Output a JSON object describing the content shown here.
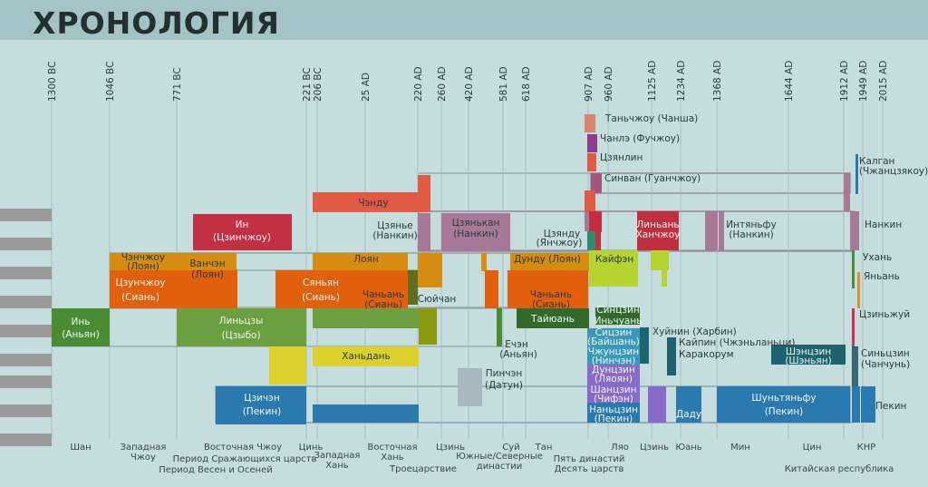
{
  "title": "ХРОНОЛОГИЯ",
  "chart_data": {
    "type": "timeline",
    "ticks": [
      "1300 BC",
      "1046 BC",
      "771 BC",
      "221 BC",
      "206 BC",
      "25 AD",
      "220 AD",
      "260 AD",
      "420 AD",
      "581 AD",
      "618 AD",
      "907 AD",
      "960 AD",
      "1125 AD",
      "1234 AD",
      "1368 AD",
      "1644 AD",
      "1912 AD",
      "1949 AD",
      "2015 AD"
    ],
    "bars": [
      {
        "color": "#d9856e",
        "row": "cj1"
      },
      {
        "color": "#8e3c8e",
        "row": "cj2"
      },
      {
        "color": "#e05a44",
        "row": "cj3"
      },
      {
        "color": "#a05880",
        "row": "cj4"
      },
      {
        "color": "#e05a44",
        "row": "nj-top"
      },
      {
        "color": "#e05a44",
        "row": "nj"
      },
      {
        "color": "#c23044",
        "row": "in"
      },
      {
        "color": "#a87898",
        "row": "njk"
      },
      {
        "color": "#a87898",
        "row": "njk2"
      },
      {
        "color": "#c02e40",
        "row": "ljx"
      },
      {
        "color": "#a87898",
        "row": "njk3"
      },
      {
        "color": "#d68c10",
        "row": "luoyang"
      },
      {
        "color": "#e0600e",
        "row": "changan"
      },
      {
        "color": "#5e6e1c",
        "row": "chan"
      },
      {
        "color": "#b6d430",
        "row": "kaifeng"
      },
      {
        "color": "#4a8c34",
        "row": "anyang"
      },
      {
        "color": "#6aa040",
        "row": "linzi"
      },
      {
        "color": "#8a9a10",
        "row": "ye"
      },
      {
        "color": "#336a2c",
        "row": "taiyuan"
      },
      {
        "color": "#dcd02c",
        "row": "handan"
      },
      {
        "color": "#a8b8c0",
        "row": "datun"
      },
      {
        "color": "#3a98b8",
        "row": "xijin"
      },
      {
        "color": "#1e6470",
        "row": "khuinin"
      },
      {
        "color": "#8a6ac8",
        "row": "shangjin"
      },
      {
        "color": "#2a7ab0",
        "row": "peking"
      }
    ]
  },
  "cities": [
    "Таньчжоу (Чанша)",
    "Чанлэ (Фучжоу)",
    "Цзянлин",
    "Синван (Гуанчжоу)",
    "Калган",
    "(Чжанцзякоу)",
    "Чэнду",
    "Ин",
    "(Цзинчжоу)",
    "Цзянье",
    "(Нанкин)",
    "Цзянькан",
    "(Нанкин)",
    "Цзянду",
    "(Янчжоу)",
    "Линьань",
    "Ханчжоу",
    "Интяньфу",
    "(Нанкин)",
    "Нанкин",
    "Чэнчжоу",
    "(Лоян)",
    "Ванчэн",
    "(Лоян)",
    "Лоян",
    "Дунду (Лоян)",
    "Кайфэн",
    "Ухань",
    "Цзунчжоу",
    "(Сиань)",
    "Сяньян",
    "(Сиань)",
    "Чаньань",
    "(Сиань)",
    "Сюйчан",
    "Чаньань",
    "(Сиань)",
    "Яньань",
    "Инь",
    "(Аньян)",
    "Линьцзы",
    "(Цзыбо)",
    "Тайюань",
    "Синцзин",
    "Иньчуань",
    "Цзиньжуй",
    "Ечэн",
    "(Аньян)",
    "Сицзин",
    "(Байшань)",
    "Хуйнин (Харбин)",
    "Кайпин (Чжэньланьци)",
    "Каракорум",
    "Шэнцзин",
    "(Шэньян)",
    "Синьцзин",
    "(Чанчунь)",
    "Ханьдань",
    "Чжунцзин",
    "(Нинчэн)",
    "Пинчэн",
    "(Датун)",
    "Дунцзин",
    "(Ляоян)",
    "Шанцзин",
    "(Чифэн)",
    "Цзичэн",
    "(Пекин)",
    "Наньцзин",
    "(Пекин)",
    "Даду",
    "Шуньтяньфу",
    "(Пекин)",
    "Пекин"
  ],
  "eras": {
    "shan": "Шан",
    "zapadnaya_chzhou": "Западная",
    "zapadnaya_chzhou2": "Чжоу",
    "vostochnaya_chzhou": "Восточная Чжоу",
    "srazh": "Период Сражающихся царств",
    "vesen": "Период Весен и Осеней",
    "cin": "Цинь",
    "zapadnaya_han": "Западная",
    "zapadnaya_han2": "Хань",
    "vostochnaya_han": "Восточная",
    "vostochnaya_han2": "Хань",
    "troecarstvie": "Троецарствие",
    "czin": "Цзинь",
    "yuzh_sev": "Южные/Северные",
    "dinastii": "династии",
    "sui": "Суй",
    "tan": "Тан",
    "pyat": "Пять династий",
    "desyat": "Десять царств",
    "lyao": "Ляо",
    "czin2": "Цзинь",
    "yuan": "Юань",
    "min": "Мин",
    "cin2": "Цин",
    "knr": "КНР",
    "kit_resp": "Китайская республика"
  }
}
